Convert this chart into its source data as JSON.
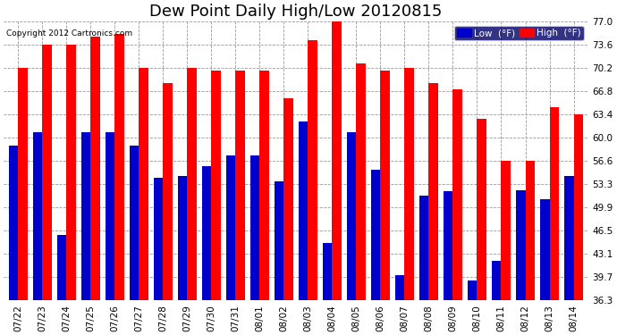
{
  "title": "Dew Point Daily High/Low 20120815",
  "copyright": "Copyright 2012 Cartronics.com",
  "dates": [
    "07/22",
    "07/23",
    "07/24",
    "07/25",
    "07/26",
    "07/27",
    "07/28",
    "07/29",
    "07/30",
    "07/31",
    "08/01",
    "08/02",
    "08/03",
    "08/04",
    "08/05",
    "08/06",
    "08/07",
    "08/08",
    "08/09",
    "08/10",
    "08/11",
    "08/12",
    "08/13",
    "08/14"
  ],
  "high_values": [
    70.2,
    73.6,
    73.6,
    74.8,
    75.2,
    70.2,
    68.0,
    70.2,
    69.8,
    69.8,
    69.8,
    65.8,
    74.2,
    77.0,
    70.8,
    69.8,
    70.2,
    68.0,
    67.0,
    62.8,
    56.6,
    56.6,
    64.4,
    63.4
  ],
  "low_values": [
    58.8,
    60.8,
    45.8,
    60.8,
    60.8,
    58.8,
    54.2,
    54.4,
    55.8,
    57.4,
    57.4,
    53.6,
    62.4,
    44.6,
    60.8,
    55.4,
    40.0,
    51.6,
    52.2,
    39.2,
    42.0,
    52.4,
    51.0,
    54.4
  ],
  "ymin": 36.3,
  "ymax": 77.0,
  "yticks": [
    36.3,
    39.7,
    43.1,
    46.5,
    49.9,
    53.3,
    56.6,
    60.0,
    63.4,
    66.8,
    70.2,
    73.6,
    77.0
  ],
  "bar_width": 0.38,
  "high_color": "#ff0000",
  "low_color": "#0000cc",
  "bg_color": "#ffffff",
  "grid_color": "#999999",
  "title_fontsize": 13,
  "tick_fontsize": 7.5,
  "legend_high_label": "High  (°F)",
  "legend_low_label": "Low  (°F)"
}
